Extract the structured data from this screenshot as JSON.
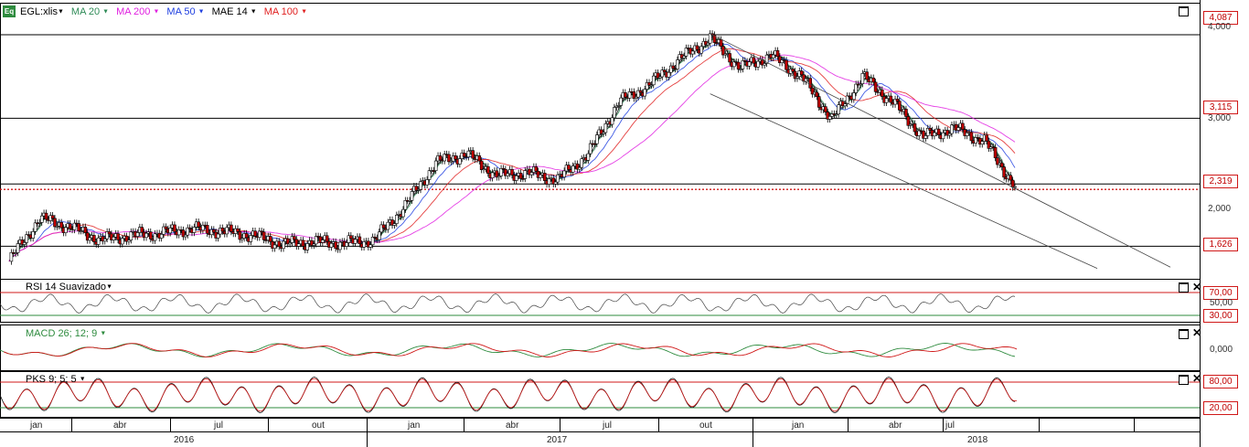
{
  "header": {
    "badge": "Eq",
    "symbol": "EGL:xlis",
    "indicators": [
      {
        "label": "MA 20",
        "color": "#2e8b57"
      },
      {
        "label": "MA 200",
        "color": "#e020e0"
      },
      {
        "label": "MA 50",
        "color": "#2040e0"
      },
      {
        "label": "MAE 14",
        "color": "#000000"
      },
      {
        "label": "MA 100",
        "color": "#e02020"
      }
    ],
    "dropdown_glyph": "▼"
  },
  "price_tags": {
    "high": "4,087",
    "resistance": "3,115",
    "last": "2,319",
    "support": "1,626"
  },
  "price_axis": [
    "4,000",
    "3,000",
    "2,000"
  ],
  "panes": {
    "rsi": {
      "label": "RSI 14 Suavizado",
      "levels": [
        "70,00",
        "50,00",
        "30,00"
      ],
      "color": "#555555"
    },
    "macd": {
      "label": "MACD 26; 12; 9",
      "level": "0,000",
      "color": "#2e8b3e"
    },
    "pks": {
      "label": "PKS 9; 5; 5",
      "levels": [
        "80,00",
        "20,00"
      ],
      "color": "#000000"
    }
  },
  "time_axis": {
    "months": [
      "jan",
      "abr",
      "jul",
      "out",
      "jan",
      "abr",
      "jul",
      "out",
      "jan",
      "abr",
      "jul"
    ],
    "years": [
      "2016",
      "2017",
      "2018"
    ]
  },
  "chart_data": {
    "type": "line",
    "title": "",
    "xlabel": "",
    "ylabel": "",
    "ylim": [
      1.3,
      4.3
    ],
    "x_start": "2016-01",
    "x_end": "2018-10",
    "horizontal_levels": [
      4.087,
      3.115,
      2.319,
      1.626
    ],
    "last_price": 2.319,
    "series": [
      {
        "type": "line",
        "x": [
          "2016-01",
          "2016-02",
          "2016-03",
          "2016-04",
          "2016-05",
          "2016-06",
          "2016-07",
          "2016-08",
          "2016-09",
          "2016-10",
          "2016-11",
          "2016-12",
          "2017-01",
          "2017-02",
          "2017-03",
          "2017-04",
          "2017-05",
          "2017-06",
          "2017-07",
          "2017-08",
          "2017-09",
          "2017-10",
          "2017-11",
          "2017-12",
          "2018-01",
          "2018-02",
          "2018-03",
          "2018-04",
          "2018-05",
          "2018-06",
          "2018-07",
          "2018-08",
          "2018-09",
          "2018-10"
        ],
        "values": [
          1.45,
          1.95,
          1.85,
          1.7,
          1.75,
          1.78,
          1.83,
          1.8,
          1.75,
          1.65,
          1.68,
          1.66,
          1.7,
          2.1,
          2.6,
          2.7,
          2.45,
          2.48,
          2.4,
          2.7,
          3.3,
          3.5,
          3.8,
          4.05,
          3.7,
          3.85,
          3.6,
          3.1,
          3.6,
          3.3,
          2.9,
          3.0,
          2.85,
          2.32
        ]
      }
    ],
    "channel": [
      {
        "from": [
          "2017-12",
          4.1
        ],
        "to": [
          "2018-10",
          2.3
        ]
      },
      {
        "from": [
          "2017-12",
          3.4
        ],
        "to": [
          "2018-10",
          1.8
        ]
      }
    ]
  }
}
